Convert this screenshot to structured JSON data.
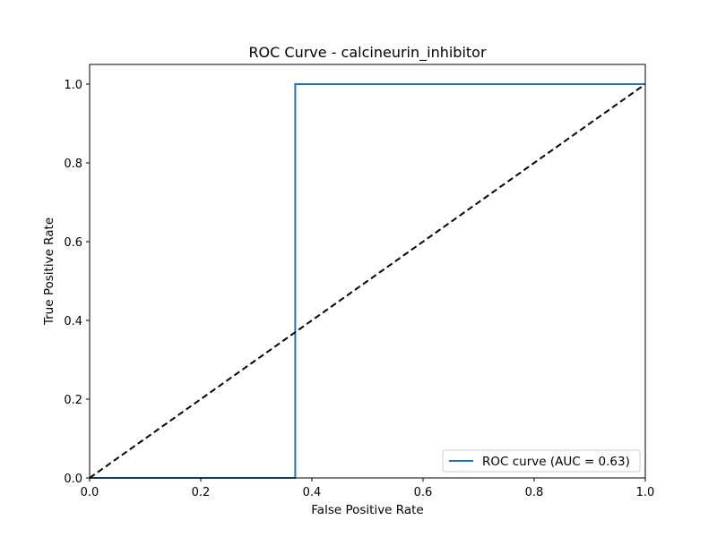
{
  "chart_data": {
    "type": "line",
    "title": "ROC Curve - calcineurin_inhibitor",
    "xlabel": "False Positive Rate",
    "ylabel": "True Positive Rate",
    "xlim": [
      0.0,
      1.0
    ],
    "ylim": [
      0.0,
      1.05
    ],
    "x_ticks": [
      0.0,
      0.2,
      0.4,
      0.6,
      0.8,
      1.0
    ],
    "y_ticks": [
      0.0,
      0.2,
      0.4,
      0.6,
      0.8,
      1.0
    ],
    "x_tick_labels": [
      "0.0",
      "0.2",
      "0.4",
      "0.6",
      "0.8",
      "1.0"
    ],
    "y_tick_labels": [
      "0.0",
      "0.2",
      "0.4",
      "0.6",
      "0.8",
      "1.0"
    ],
    "grid": false,
    "legend_position": "lower-right",
    "series": [
      {
        "name": "ROC curve (AUC = 0.63)",
        "color": "#1f77b4",
        "style": "solid",
        "x": [
          0.0,
          0.37,
          0.37,
          1.0
        ],
        "y": [
          0.0,
          0.0,
          1.0,
          1.0
        ]
      },
      {
        "color": "#000000",
        "style": "dashed",
        "x": [
          0.0,
          1.0
        ],
        "y": [
          0.0,
          1.0
        ]
      }
    ]
  }
}
